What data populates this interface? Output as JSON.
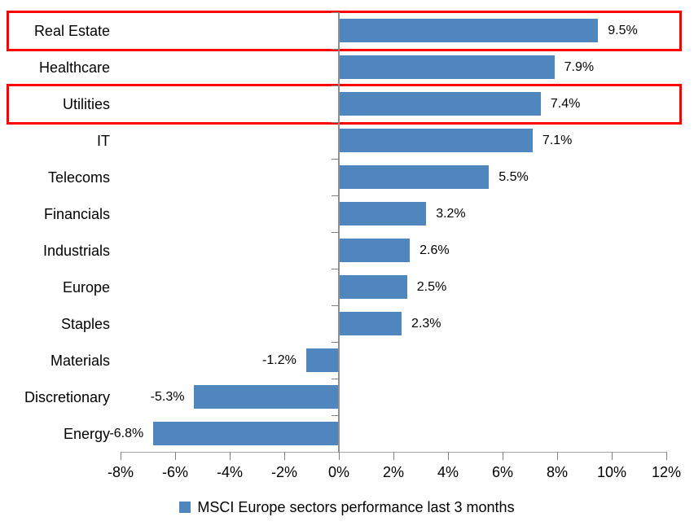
{
  "chart_data": {
    "type": "bar",
    "orientation": "horizontal",
    "title": "",
    "categories": [
      "Real Estate",
      "Healthcare",
      "Utilities",
      "IT",
      "Telecoms",
      "Financials",
      "Industrials",
      "Europe",
      "Staples",
      "Materials",
      "Discretionary",
      "Energy"
    ],
    "values": [
      9.5,
      7.9,
      7.4,
      7.1,
      5.5,
      3.2,
      2.6,
      2.5,
      2.3,
      -1.2,
      -5.3,
      -6.8
    ],
    "data_labels": [
      "9.5%",
      "7.9%",
      "7.4%",
      "7.1%",
      "5.5%",
      "3.2%",
      "2.6%",
      "2.5%",
      "2.3%",
      "-1.2%",
      "-5.3%",
      "-6.8%"
    ],
    "series_name": "MSCI Europe sectors performance last 3 months",
    "xlim": [
      -8,
      12
    ],
    "x_tick_step": 2,
    "x_ticks": [
      -8,
      -6,
      -4,
      -2,
      0,
      2,
      4,
      6,
      8,
      10,
      12
    ],
    "x_tick_labels": [
      "-8%",
      "-6%",
      "-4%",
      "-2%",
      "0%",
      "2%",
      "4%",
      "6%",
      "8%",
      "10%",
      "12%"
    ],
    "grid": false,
    "legend_position": "bottom",
    "bar_color": "#4f86be",
    "axis_color_h": "#a6a6a6",
    "axis_color_v": "#8f8f8f",
    "tick_color": "#808080",
    "text_color": "#000000",
    "highlight_color": "#fe0000",
    "highlighted_categories": [
      "Real Estate",
      "Utilities"
    ]
  },
  "legend": {
    "label": "MSCI Europe sectors performance last 3 months"
  }
}
